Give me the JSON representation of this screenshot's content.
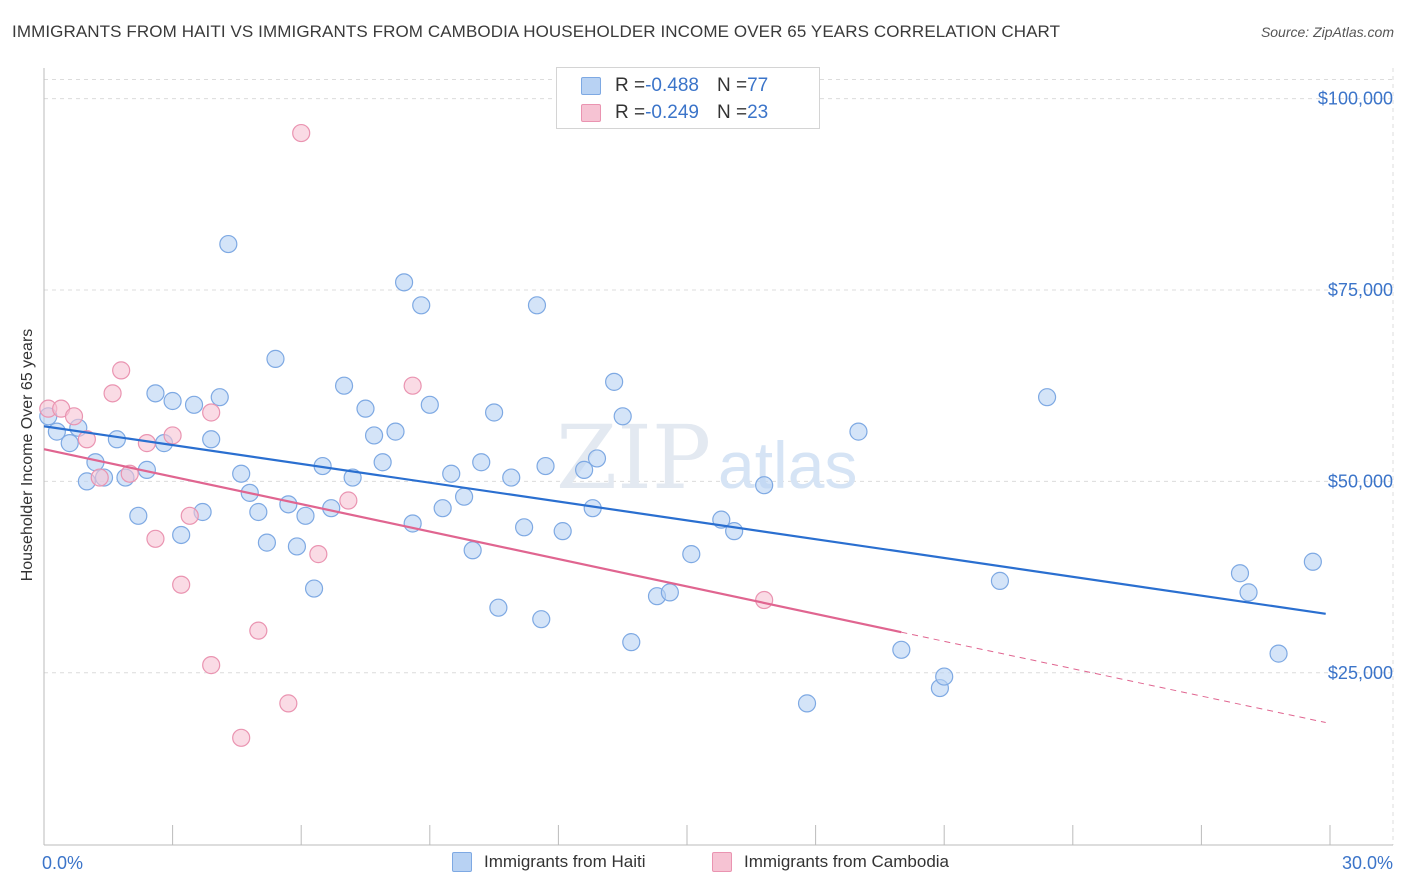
{
  "title": "IMMIGRANTS FROM HAITI VS IMMIGRANTS FROM CAMBODIA HOUSEHOLDER INCOME OVER 65 YEARS CORRELATION CHART",
  "source": "Source: ZipAtlas.com",
  "watermark": {
    "zip": "ZIP",
    "atlas": "atlas"
  },
  "legend": {
    "rows": [
      {
        "r_label": "R = ",
        "r_value": "-0.488",
        "n_label": "N = ",
        "n_value": "77"
      },
      {
        "r_label": "R = ",
        "r_value": "-0.249",
        "n_label": "N = ",
        "n_value": "23"
      }
    ]
  },
  "colors": {
    "haiti_fill": "#b8d2f3",
    "haiti_stroke": "#7ea9e3",
    "haiti_line": "#2a6fd0",
    "cambodia_fill": "#f6c3d3",
    "cambodia_stroke": "#ea94b1",
    "cambodia_line": "#e06590",
    "grid": "#dcdcdc",
    "tick_label": "#3b74c9"
  },
  "chart_data": {
    "type": "scatter",
    "title": "IMMIGRANTS FROM HAITI VS IMMIGRANTS FROM CAMBODIA HOUSEHOLDER INCOME OVER 65 YEARS CORRELATION CHART",
    "xlabel": "",
    "ylabel": "Householder Income Over 65 years",
    "xlim": [
      0,
      30
    ],
    "ylim": [
      2500,
      104000
    ],
    "x_tick_labels": [
      "0.0%",
      "30.0%"
    ],
    "y_ticks": [
      25000,
      50000,
      75000,
      100000
    ],
    "y_tick_labels": [
      "$25,000",
      "$50,000",
      "$75,000",
      "$100,000"
    ],
    "grid": true,
    "legend_position": "top-center",
    "series": [
      {
        "name": "Immigrants from Haiti",
        "points": [
          [
            0.1,
            58500
          ],
          [
            0.3,
            56500
          ],
          [
            0.6,
            55000
          ],
          [
            0.8,
            57000
          ],
          [
            1.0,
            50000
          ],
          [
            1.2,
            52500
          ],
          [
            1.4,
            50500
          ],
          [
            1.7,
            55500
          ],
          [
            1.9,
            50500
          ],
          [
            2.2,
            45500
          ],
          [
            2.4,
            51500
          ],
          [
            2.6,
            61500
          ],
          [
            2.8,
            55000
          ],
          [
            3.0,
            60500
          ],
          [
            3.2,
            43000
          ],
          [
            3.5,
            60000
          ],
          [
            3.7,
            46000
          ],
          [
            3.9,
            55500
          ],
          [
            4.1,
            61000
          ],
          [
            4.3,
            81000
          ],
          [
            4.6,
            51000
          ],
          [
            4.8,
            48500
          ],
          [
            5.0,
            46000
          ],
          [
            5.2,
            42000
          ],
          [
            5.4,
            66000
          ],
          [
            5.7,
            47000
          ],
          [
            5.9,
            41500
          ],
          [
            6.1,
            45500
          ],
          [
            6.3,
            36000
          ],
          [
            6.5,
            52000
          ],
          [
            6.7,
            46500
          ],
          [
            7.0,
            62500
          ],
          [
            7.2,
            50500
          ],
          [
            7.5,
            59500
          ],
          [
            7.7,
            56000
          ],
          [
            7.9,
            52500
          ],
          [
            8.2,
            56500
          ],
          [
            8.4,
            76000
          ],
          [
            8.6,
            44500
          ],
          [
            8.8,
            73000
          ],
          [
            9.0,
            60000
          ],
          [
            9.3,
            46500
          ],
          [
            9.5,
            51000
          ],
          [
            9.8,
            48000
          ],
          [
            10.0,
            41000
          ],
          [
            10.2,
            52500
          ],
          [
            10.5,
            59000
          ],
          [
            10.6,
            33500
          ],
          [
            10.9,
            50500
          ],
          [
            11.2,
            44000
          ],
          [
            11.5,
            73000
          ],
          [
            11.6,
            32000
          ],
          [
            11.7,
            52000
          ],
          [
            12.1,
            43500
          ],
          [
            12.6,
            51500
          ],
          [
            12.8,
            46500
          ],
          [
            12.9,
            53000
          ],
          [
            13.3,
            63000
          ],
          [
            13.5,
            58500
          ],
          [
            13.7,
            29000
          ],
          [
            14.3,
            35000
          ],
          [
            14.6,
            35500
          ],
          [
            15.1,
            40500
          ],
          [
            15.8,
            45000
          ],
          [
            16.1,
            43500
          ],
          [
            16.8,
            49500
          ],
          [
            17.8,
            21000
          ],
          [
            19.0,
            56500
          ],
          [
            20.0,
            28000
          ],
          [
            20.9,
            23000
          ],
          [
            21.0,
            24500
          ],
          [
            22.3,
            37000
          ],
          [
            23.4,
            61000
          ],
          [
            27.9,
            38000
          ],
          [
            28.1,
            35500
          ],
          [
            28.8,
            27500
          ],
          [
            29.6,
            39500
          ]
        ],
        "trend": {
          "x": [
            0,
            29.9
          ],
          "y": [
            57200,
            32700
          ]
        }
      },
      {
        "name": "Immigrants from Cambodia",
        "points": [
          [
            0.1,
            59500
          ],
          [
            0.4,
            59500
          ],
          [
            0.7,
            58500
          ],
          [
            1.0,
            55500
          ],
          [
            1.3,
            50500
          ],
          [
            1.6,
            61500
          ],
          [
            1.8,
            64500
          ],
          [
            2.0,
            51000
          ],
          [
            2.4,
            55000
          ],
          [
            2.6,
            42500
          ],
          [
            3.0,
            56000
          ],
          [
            3.2,
            36500
          ],
          [
            3.4,
            45500
          ],
          [
            3.9,
            59000
          ],
          [
            3.9,
            26000
          ],
          [
            4.6,
            16500
          ],
          [
            5.0,
            30500
          ],
          [
            5.7,
            21000
          ],
          [
            6.4,
            40500
          ],
          [
            7.1,
            47500
          ],
          [
            8.6,
            62500
          ],
          [
            6.0,
            95500
          ],
          [
            16.8,
            34500
          ]
        ],
        "trend": {
          "x": [
            0,
            20.0
          ],
          "y": [
            54200,
            30300
          ]
        },
        "trend_extension": {
          "x": [
            20.0,
            29.9
          ],
          "y": [
            30300,
            18500
          ]
        }
      }
    ]
  }
}
